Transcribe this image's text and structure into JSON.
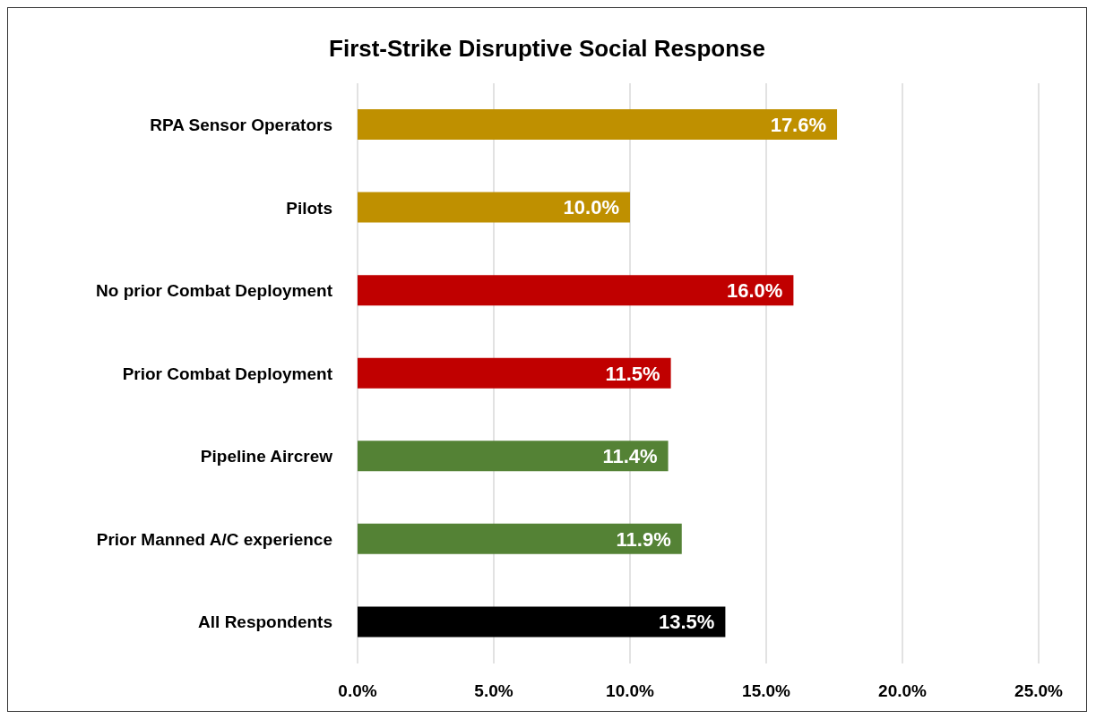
{
  "chart_data": {
    "type": "bar",
    "orientation": "horizontal",
    "title": "First-Strike Disruptive Social Response",
    "categories": [
      "RPA Sensor Operators",
      "Pilots",
      "No prior Combat Deployment",
      "Prior Combat Deployment",
      "Pipeline Aircrew",
      "Prior Manned A/C experience",
      "All Respondents"
    ],
    "values": [
      17.6,
      10.0,
      16.0,
      11.5,
      11.4,
      11.9,
      13.5
    ],
    "colors": [
      "#bf9000",
      "#bf9000",
      "#c00000",
      "#c00000",
      "#548235",
      "#548235",
      "#000000"
    ],
    "value_labels": [
      "17.6%",
      "10.0%",
      "16.0%",
      "11.5%",
      "11.4%",
      "11.9%",
      "13.5%"
    ],
    "xlim": [
      0,
      25
    ],
    "xticks": [
      {
        "value": 0,
        "label": "0.0%"
      },
      {
        "value": 5,
        "label": "5.0%"
      },
      {
        "value": 10,
        "label": "10.0%"
      },
      {
        "value": 15,
        "label": "15.0%"
      },
      {
        "value": 20,
        "label": "20.0%"
      },
      {
        "value": 25,
        "label": "25.0%"
      }
    ],
    "grid": "x"
  }
}
